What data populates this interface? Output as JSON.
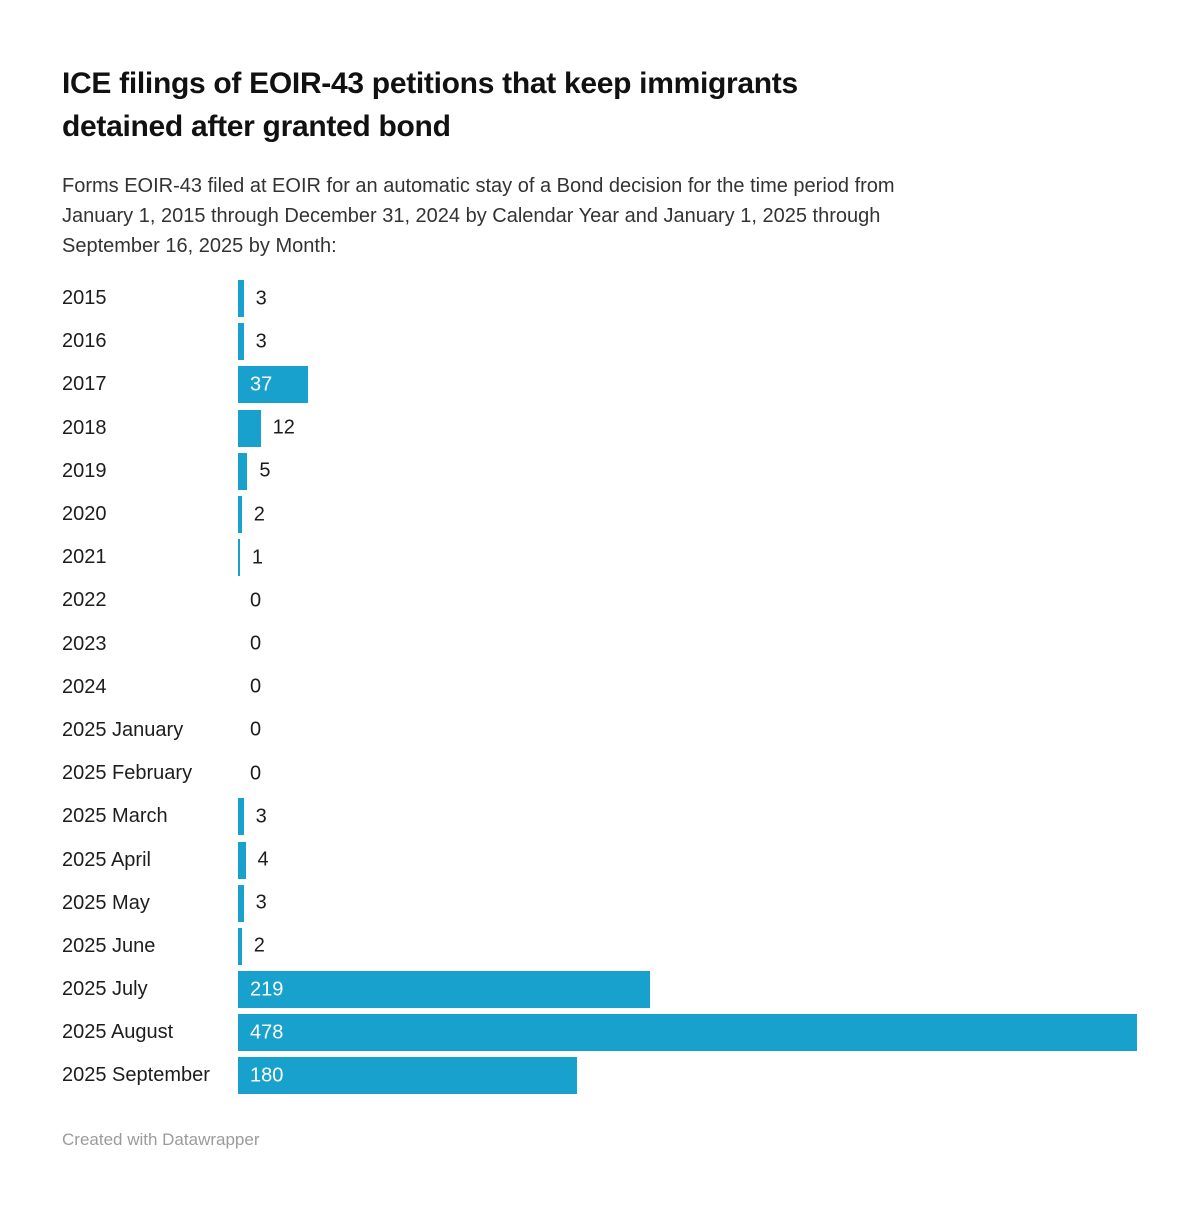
{
  "header": {
    "title": "ICE filings of EOIR-43 petitions that keep immigrants\ndetained after granted bond",
    "subtitle": "Forms EOIR-43 filed at EOIR for an automatic stay of a Bond decision for the time period from\nJanuary 1, 2015 through December 31, 2024 by Calendar Year and January 1, 2025 through\nSeptember 16, 2025 by Month:"
  },
  "colors": {
    "bar": "#18a1cd",
    "title_text": "#111111",
    "body_text": "#333333",
    "category_text": "#1d1d1d",
    "value_label_inside": "#ffffff",
    "value_label_outside": "#1d1d1d",
    "attribution_text": "#9b9b9b",
    "background": "#ffffff"
  },
  "chart_data": {
    "type": "bar",
    "orientation": "horizontal",
    "title": "ICE filings of EOIR-43 petitions that keep immigrants\ndetained after granted bond",
    "subtitle": "Forms EOIR-43 filed at EOIR for an automatic stay of a Bond decision for the time period from\nJanuary 1, 2015 through December 31, 2024 by Calendar Year and January 1, 2025 through\nSeptember 16, 2025 by Month:",
    "categories": [
      "2015",
      "2016",
      "2017",
      "2018",
      "2019",
      "2020",
      "2021",
      "2022",
      "2023",
      "2024",
      "2025 January",
      "2025 February",
      "2025 March",
      "2025 April",
      "2025 May",
      "2025 June",
      "2025 July",
      "2025 August",
      "2025 September"
    ],
    "values": [
      3,
      3,
      37,
      12,
      5,
      2,
      1,
      0,
      0,
      0,
      0,
      0,
      3,
      4,
      3,
      2,
      219,
      478,
      180
    ],
    "xlabel": "",
    "ylabel": "",
    "xlim": [
      0,
      478
    ],
    "grid": false,
    "legend": false,
    "value_labels": true
  },
  "footer": {
    "attribution": "Created with Datawrapper"
  }
}
